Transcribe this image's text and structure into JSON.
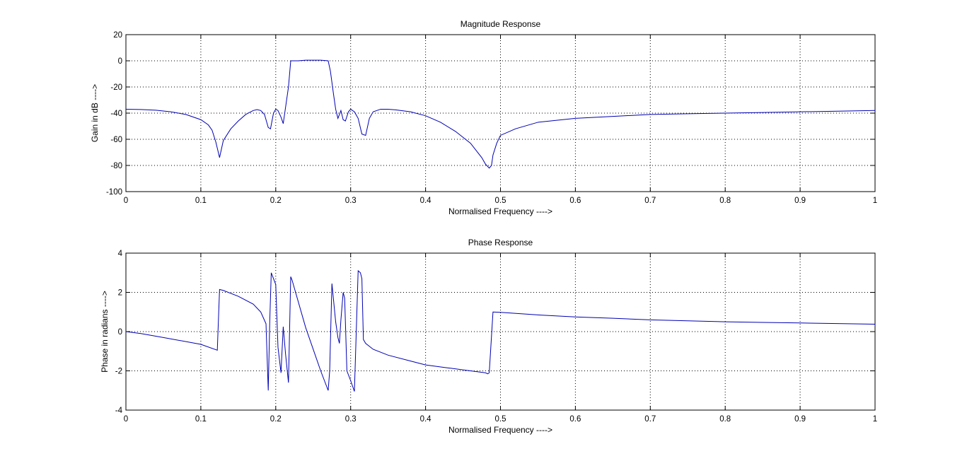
{
  "line_color": "#0000b4",
  "chart_data": [
    {
      "type": "line",
      "title": "Magnitude Response",
      "xlabel": "Normalised Frequency ---->",
      "ylabel": "Gain in dB ---->",
      "xlim": [
        0,
        1
      ],
      "ylim": [
        -100,
        20
      ],
      "xticks": [
        0,
        0.1,
        0.2,
        0.3,
        0.4,
        0.5,
        0.6,
        0.7,
        0.8,
        0.9,
        1
      ],
      "xtick_labels": [
        "0",
        "0.1",
        "0.2",
        "0.3",
        "0.4",
        "0.5",
        "0.6",
        "0.7",
        "0.8",
        "0.9",
        "1"
      ],
      "yticks": [
        20,
        0,
        -20,
        -40,
        -60,
        -80,
        -100
      ],
      "ytick_labels": [
        "20",
        "0",
        "-20",
        "-40",
        "-60",
        "-80",
        "-100"
      ],
      "grid": true,
      "series": [
        {
          "x": [
            0,
            0.02,
            0.04,
            0.06,
            0.08,
            0.1,
            0.11,
            0.115,
            0.12,
            0.125,
            0.13,
            0.14,
            0.15,
            0.16,
            0.17,
            0.175,
            0.18,
            0.185,
            0.19,
            0.193,
            0.197,
            0.2,
            0.203,
            0.207,
            0.21,
            0.213,
            0.217,
            0.22,
            0.23,
            0.24,
            0.25,
            0.26,
            0.27,
            0.273,
            0.277,
            0.28,
            0.283,
            0.287,
            0.29,
            0.293,
            0.297,
            0.3,
            0.305,
            0.31,
            0.315,
            0.32,
            0.325,
            0.33,
            0.34,
            0.35,
            0.36,
            0.38,
            0.4,
            0.42,
            0.44,
            0.46,
            0.475,
            0.48,
            0.485,
            0.488,
            0.49,
            0.495,
            0.5,
            0.52,
            0.55,
            0.6,
            0.65,
            0.7,
            0.75,
            0.8,
            0.85,
            0.9,
            0.95,
            1
          ],
          "y": [
            -37,
            -37.2,
            -37.8,
            -39,
            -41,
            -45,
            -49,
            -53,
            -62,
            -74,
            -61,
            -52,
            -46,
            -41,
            -38,
            -37.3,
            -38,
            -41,
            -51,
            -52,
            -40,
            -37,
            -38,
            -43,
            -48,
            -36,
            -20,
            0,
            0,
            0.5,
            0.5,
            0.5,
            0,
            -8,
            -25,
            -37,
            -44,
            -38,
            -45,
            -46,
            -39,
            -37,
            -39,
            -44,
            -56,
            -57,
            -44,
            -39,
            -37,
            -37,
            -37.5,
            -39,
            -42,
            -47,
            -54,
            -63,
            -74,
            -79,
            -82,
            -80,
            -72,
            -63,
            -57,
            -52,
            -47,
            -44,
            -42.5,
            -41,
            -40.5,
            -40,
            -39.5,
            -39,
            -38.5,
            -38
          ]
        }
      ]
    },
    {
      "type": "line",
      "title": "Phase Response",
      "xlabel": "Normalised Frequency ---->",
      "ylabel": "Phase in radians ---->",
      "xlim": [
        0,
        1
      ],
      "ylim": [
        -4,
        4
      ],
      "xticks": [
        0,
        0.1,
        0.2,
        0.3,
        0.4,
        0.5,
        0.6,
        0.7,
        0.8,
        0.9,
        1
      ],
      "xtick_labels": [
        "0",
        "0.1",
        "0.2",
        "0.3",
        "0.4",
        "0.5",
        "0.6",
        "0.7",
        "0.8",
        "0.9",
        "1"
      ],
      "yticks": [
        4,
        2,
        0,
        -2,
        -4
      ],
      "ytick_labels": [
        "4",
        "2",
        "0",
        "-2",
        "-4"
      ],
      "grid": true,
      "series": [
        {
          "x": [
            0,
            0.02,
            0.05,
            0.1,
            0.122,
            0.125,
            0.13,
            0.15,
            0.17,
            0.18,
            0.187,
            0.19,
            0.192,
            0.194,
            0.2,
            0.203,
            0.207,
            0.21,
            0.213,
            0.217,
            0.22,
            0.222,
            0.225,
            0.24,
            0.26,
            0.27,
            0.272,
            0.275,
            0.28,
            0.283,
            0.285,
            0.287,
            0.29,
            0.292,
            0.295,
            0.3,
            0.305,
            0.307,
            0.31,
            0.313,
            0.315,
            0.317,
            0.32,
            0.33,
            0.35,
            0.38,
            0.4,
            0.43,
            0.46,
            0.48,
            0.483,
            0.485,
            0.49,
            0.5,
            0.55,
            0.6,
            0.65,
            0.7,
            0.75,
            0.8,
            0.85,
            0.9,
            0.95,
            1
          ],
          "y": [
            0,
            -0.1,
            -0.3,
            -0.65,
            -0.95,
            2.15,
            2.1,
            1.8,
            1.4,
            1,
            0.4,
            -3,
            0.5,
            3,
            2.4,
            -0.8,
            -2.1,
            0.25,
            -1.1,
            -2.6,
            2.8,
            2.6,
            2.2,
            0.2,
            -2,
            -3,
            -2,
            2.45,
            0.5,
            -0.3,
            -0.6,
            0.6,
            2,
            1.7,
            -2,
            -2.5,
            -3.05,
            -0.6,
            3.1,
            3,
            2.7,
            -0.4,
            -0.6,
            -0.9,
            -1.2,
            -1.5,
            -1.7,
            -1.85,
            -2,
            -2.1,
            -2.15,
            -2.1,
            1,
            0.98,
            0.85,
            0.75,
            0.68,
            0.6,
            0.55,
            0.5,
            0.47,
            0.44,
            0.41,
            0.38
          ]
        }
      ]
    }
  ]
}
